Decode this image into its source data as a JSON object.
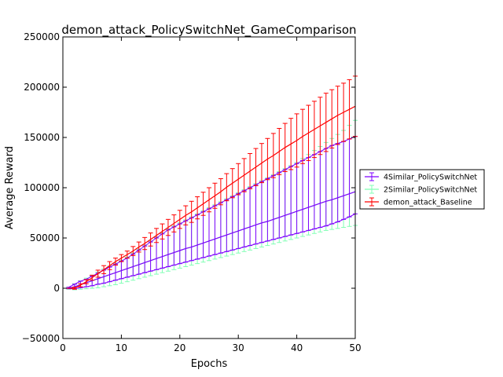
{
  "chart_data": {
    "type": "line",
    "title": "demon_attack_PolicySwitchNet_GameComparison",
    "xlabel": "Epochs",
    "ylabel": "Average Reward",
    "xlim": [
      0,
      50
    ],
    "ylim": [
      -50000,
      250000
    ],
    "x_ticks": [
      0,
      10,
      20,
      30,
      40,
      50
    ],
    "y_ticks": [
      -50000,
      0,
      50000,
      100000,
      150000,
      200000,
      250000
    ],
    "x_tick_labels": [
      "0",
      "10",
      "20",
      "30",
      "40",
      "50"
    ],
    "y_tick_labels": [
      "−50000",
      "0",
      "50000",
      "100000",
      "150000",
      "200000",
      "250000"
    ],
    "grid": false,
    "legend_position": "right",
    "error_bars": true,
    "series": [
      {
        "name": "4Similar_PolicySwitchNet",
        "color": "#7f00ff",
        "x": [
          1,
          2,
          3,
          4,
          5,
          6,
          7,
          8,
          9,
          10,
          11,
          12,
          13,
          14,
          15,
          16,
          17,
          18,
          19,
          20,
          21,
          22,
          23,
          24,
          25,
          26,
          27,
          28,
          29,
          30,
          31,
          32,
          33,
          34,
          35,
          36,
          37,
          38,
          39,
          40,
          41,
          42,
          43,
          44,
          45,
          46,
          47,
          48,
          49,
          50
        ],
        "values": [
          0,
          1500,
          3500,
          5500,
          7500,
          9500,
          11500,
          13500,
          15500,
          17500,
          19500,
          21500,
          23500,
          25500,
          27500,
          29500,
          31500,
          33500,
          35500,
          37500,
          39500,
          41000,
          43000,
          45000,
          47000,
          49000,
          51000,
          53000,
          55000,
          57000,
          59000,
          61000,
          63000,
          65000,
          66500,
          68500,
          70500,
          72500,
          74500,
          76500,
          78500,
          80500,
          82500,
          84500,
          86500,
          88000,
          90000,
          92000,
          94000,
          96000
        ],
        "upper": [
          1000,
          4000,
          7000,
          9000,
          12000,
          15000,
          18000,
          21000,
          24000,
          27000,
          30000,
          34000,
          38000,
          42000,
          46000,
          50000,
          54000,
          58000,
          61000,
          64000,
          67000,
          70000,
          73000,
          76000,
          79000,
          82000,
          85000,
          88000,
          91000,
          94000,
          97000,
          100000,
          103000,
          106000,
          109000,
          112000,
          115000,
          118000,
          121000,
          124000,
          127000,
          130000,
          133000,
          136000,
          139000,
          142000,
          144000,
          146000,
          148500,
          151000
        ],
        "lower": [
          -500,
          -500,
          500,
          1500,
          2500,
          4000,
          5000,
          6500,
          8000,
          9500,
          11000,
          12500,
          14000,
          15500,
          17000,
          18500,
          20000,
          21500,
          23000,
          24500,
          26000,
          27500,
          29000,
          30500,
          32000,
          33500,
          35000,
          36500,
          38000,
          39500,
          41000,
          42500,
          44000,
          45500,
          47000,
          48500,
          50000,
          51500,
          53000,
          54500,
          56000,
          57500,
          59000,
          60500,
          62000,
          64000,
          66000,
          68500,
          71000,
          74000
        ]
      },
      {
        "name": "2Similar_PolicySwitchNet",
        "color": "#80ffb4",
        "x": [
          1,
          2,
          3,
          4,
          5,
          6,
          7,
          8,
          9,
          10,
          11,
          12,
          13,
          14,
          15,
          16,
          17,
          18,
          19,
          20,
          21,
          22,
          23,
          24,
          25,
          26,
          27,
          28,
          29,
          30,
          31,
          32,
          33,
          34,
          35,
          36,
          37,
          38,
          39,
          40,
          41,
          42,
          43,
          44,
          45,
          46,
          47,
          48,
          49,
          50
        ],
        "values": [
          0,
          1500,
          3500,
          5500,
          7500,
          9500,
          11500,
          13500,
          15500,
          17500,
          19500,
          21500,
          23500,
          25500,
          27500,
          29500,
          31500,
          33500,
          35500,
          37500,
          39500,
          41000,
          43000,
          45000,
          47000,
          49000,
          51000,
          53000,
          55000,
          57000,
          59000,
          61000,
          63000,
          65000,
          66500,
          68500,
          70500,
          72500,
          74500,
          76500,
          78500,
          80500,
          82500,
          84500,
          86500,
          88000,
          90000,
          92000,
          94000,
          96000
        ],
        "upper": [
          1000,
          4500,
          7500,
          10000,
          13000,
          16000,
          19000,
          22000,
          25000,
          28000,
          31000,
          35000,
          39000,
          43000,
          47000,
          51000,
          55000,
          59000,
          62000,
          65000,
          68000,
          71000,
          74000,
          77000,
          80000,
          83000,
          86000,
          89000,
          92000,
          95000,
          98000,
          101000,
          104000,
          107000,
          110000,
          113000,
          116000,
          119000,
          122000,
          125000,
          129000,
          133000,
          137000,
          141000,
          145000,
          149000,
          153000,
          157000,
          162000,
          167000
        ],
        "lower": [
          -1000,
          -1500,
          -1000,
          -500,
          0,
          500,
          1500,
          2500,
          3500,
          5000,
          6500,
          8000,
          9500,
          11000,
          12500,
          14000,
          15500,
          17000,
          18500,
          20000,
          21500,
          23000,
          24500,
          26000,
          27500,
          29000,
          30500,
          32000,
          33500,
          35000,
          36500,
          38000,
          39500,
          41000,
          42500,
          44000,
          45500,
          47000,
          48500,
          50000,
          51500,
          53000,
          54500,
          56000,
          57500,
          58500,
          59500,
          60500,
          61500,
          62500
        ]
      },
      {
        "name": "demon_attack_Baseline",
        "color": "#ff0000",
        "x": [
          1,
          2,
          3,
          4,
          5,
          6,
          7,
          8,
          9,
          10,
          11,
          12,
          13,
          14,
          15,
          16,
          17,
          18,
          19,
          20,
          21,
          22,
          23,
          24,
          25,
          26,
          27,
          28,
          29,
          30,
          31,
          32,
          33,
          34,
          35,
          36,
          37,
          38,
          39,
          40,
          41,
          42,
          43,
          44,
          45,
          46,
          47,
          48,
          49,
          50
        ],
        "values": [
          0,
          0,
          3000,
          6500,
          10500,
          14500,
          18500,
          22500,
          26500,
          30000,
          33500,
          37000,
          41000,
          44500,
          48500,
          52500,
          56500,
          60500,
          64500,
          68500,
          72500,
          76000,
          80000,
          84000,
          88000,
          92000,
          96000,
          100500,
          104500,
          108500,
          112500,
          116500,
          120500,
          124500,
          128500,
          132000,
          136000,
          140000,
          143500,
          147000,
          151000,
          154500,
          158000,
          161500,
          165000,
          168500,
          172000,
          175000,
          178000,
          181000
        ],
        "upper": [
          0,
          1000,
          4500,
          8500,
          13000,
          18000,
          22500,
          26500,
          30000,
          33500,
          37000,
          41500,
          46000,
          50500,
          55000,
          59500,
          64000,
          68500,
          73000,
          77500,
          82000,
          86500,
          91000,
          95500,
          100000,
          104500,
          109000,
          114000,
          119000,
          124000,
          129000,
          134000,
          139000,
          144000,
          149000,
          154000,
          159000,
          164000,
          169000,
          173500,
          178000,
          182000,
          186000,
          190000,
          194000,
          197500,
          201000,
          204000,
          207500,
          211000
        ],
        "lower": [
          0,
          -1000,
          1500,
          4500,
          8000,
          11000,
          14500,
          18500,
          23000,
          26500,
          30000,
          32500,
          36000,
          38500,
          42000,
          45500,
          49000,
          52500,
          56000,
          59500,
          63000,
          65500,
          69000,
          72500,
          76000,
          79500,
          83000,
          87000,
          90000,
          93000,
          96000,
          99000,
          102000,
          105000,
          108000,
          110000,
          113000,
          116000,
          118000,
          120500,
          124000,
          127000,
          130000,
          133000,
          136000,
          139500,
          143000,
          146000,
          148500,
          151000
        ]
      }
    ]
  }
}
